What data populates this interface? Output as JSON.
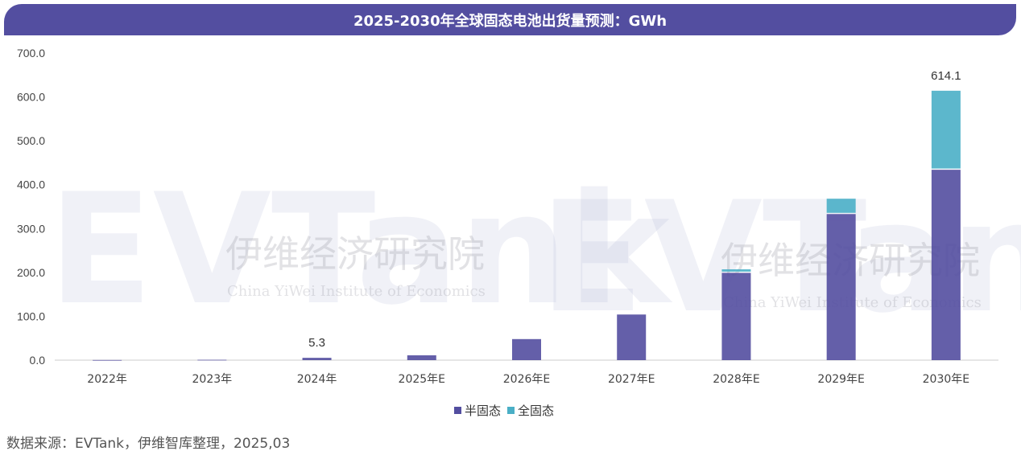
{
  "chart_data": {
    "type": "bar",
    "stacked": true,
    "title": "2025-2030年全球固态电池出货量预测：GWh",
    "categories": [
      "2022年",
      "2023年",
      "2024年",
      "2025年E",
      "2026年E",
      "2027年E",
      "2028年E",
      "2029年E",
      "2030年E"
    ],
    "series": [
      {
        "name": "半固态",
        "color": "#534EA0",
        "values": [
          0.3,
          0.8,
          5.3,
          11,
          48,
          104,
          199,
          333,
          434
        ]
      },
      {
        "name": "全固态",
        "color": "#4AAFC6",
        "values": [
          0,
          0,
          0,
          0,
          0,
          0,
          8,
          35,
          180.1
        ]
      }
    ],
    "data_labels": [
      {
        "category": "2024年",
        "text": "5.3"
      },
      {
        "category": "2030年E",
        "text": "614.1"
      }
    ],
    "ylim": [
      0,
      700
    ],
    "yticks": [
      "0.0",
      "100.0",
      "200.0",
      "300.0",
      "400.0",
      "500.0",
      "600.0",
      "700.0"
    ],
    "grid": false,
    "legend_position": "bottom"
  },
  "source": "数据来源：EVTank，伊维智库整理，2025,03",
  "watermark": {
    "logo": "EVTank",
    "brand_short": "伊维智库",
    "brand_full": "伊维经济研究院",
    "brand_en": "China YiWei Institute of Economics"
  }
}
